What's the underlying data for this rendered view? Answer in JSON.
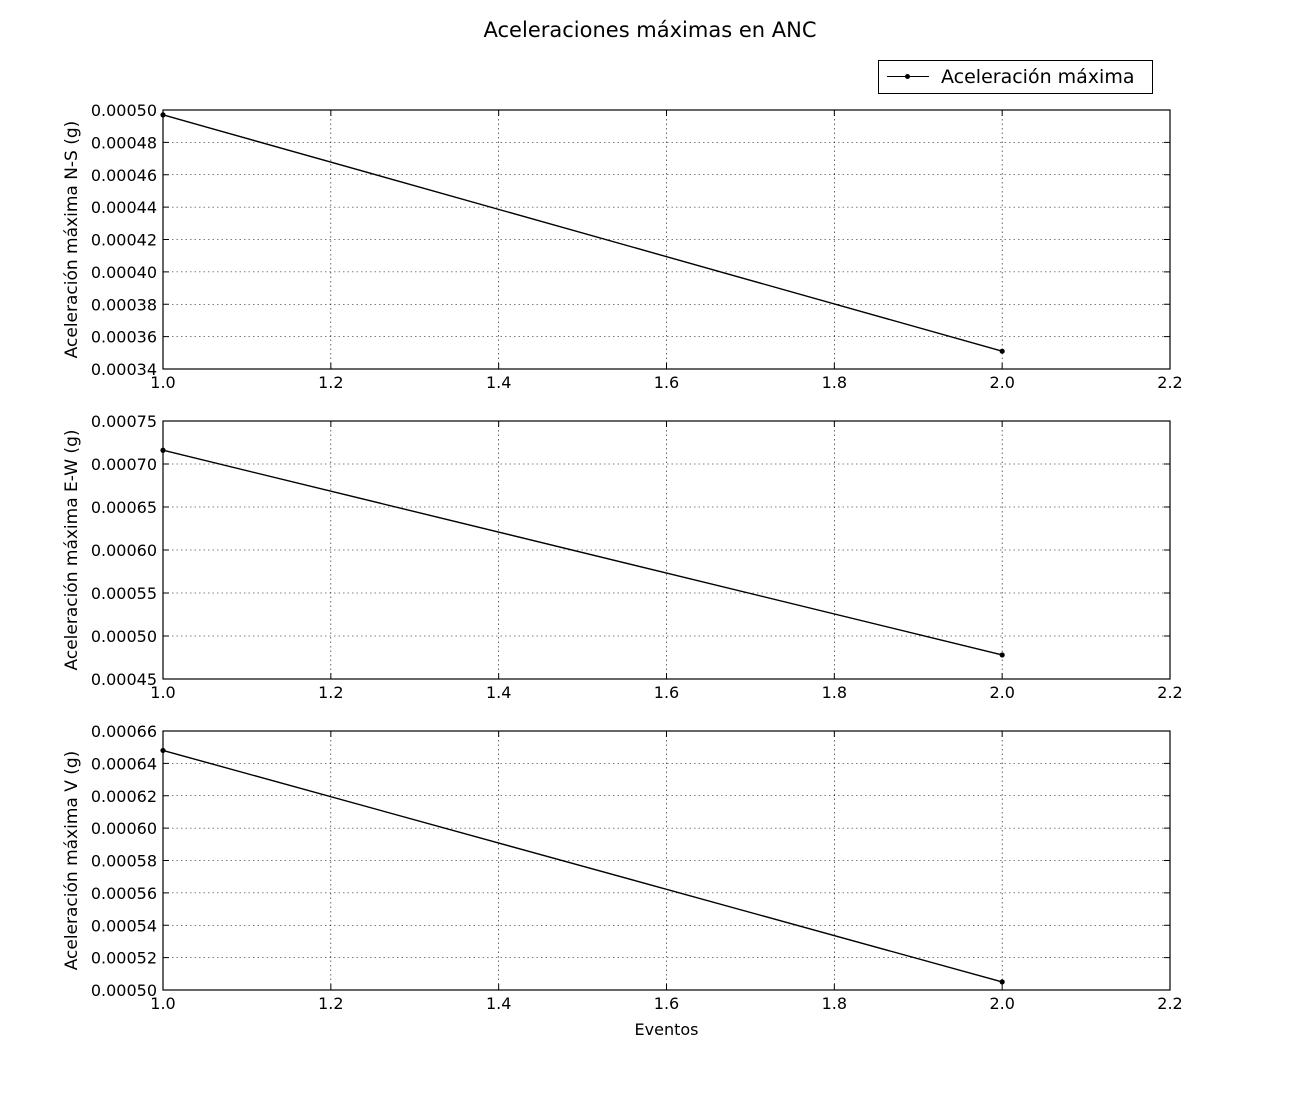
{
  "figure": {
    "title": "Aceleraciones máximas en ANC",
    "legend_label": "Aceleración máxima",
    "line_color": "#000000"
  },
  "chart_data": [
    {
      "type": "line",
      "title": "",
      "xlabel": "",
      "ylabel": "Aceleración máxima N-S (g)",
      "x": [
        1.0,
        2.0
      ],
      "series": [
        {
          "name": "Aceleración máxima",
          "values": [
            0.000497,
            0.000351
          ]
        }
      ],
      "xlim": [
        1.0,
        2.2
      ],
      "ylim": [
        0.00034,
        0.0005
      ],
      "xticks": [
        "1.0",
        "1.2",
        "1.4",
        "1.6",
        "1.8",
        "2.0",
        "2.2"
      ],
      "yticks": [
        "0.00034",
        "0.00036",
        "0.00038",
        "0.00040",
        "0.00042",
        "0.00044",
        "0.00046",
        "0.00048",
        "0.00050"
      ],
      "grid": true,
      "legend": "top-right"
    },
    {
      "type": "line",
      "title": "",
      "xlabel": "",
      "ylabel": "Aceleración máxima E-W (g)",
      "x": [
        1.0,
        2.0
      ],
      "series": [
        {
          "name": "Aceleración máxima",
          "values": [
            0.000716,
            0.000478
          ]
        }
      ],
      "xlim": [
        1.0,
        2.2
      ],
      "ylim": [
        0.00045,
        0.00075
      ],
      "xticks": [
        "1.0",
        "1.2",
        "1.4",
        "1.6",
        "1.8",
        "2.0",
        "2.2"
      ],
      "yticks": [
        "0.00045",
        "0.00050",
        "0.00055",
        "0.00060",
        "0.00065",
        "0.00070",
        "0.00075"
      ],
      "grid": true
    },
    {
      "type": "line",
      "title": "",
      "xlabel": "Eventos",
      "ylabel": "Aceleración máxima V (g)",
      "x": [
        1.0,
        2.0
      ],
      "series": [
        {
          "name": "Aceleración máxima",
          "values": [
            0.000648,
            0.000505
          ]
        }
      ],
      "xlim": [
        1.0,
        2.2
      ],
      "ylim": [
        0.0005,
        0.00066
      ],
      "xticks": [
        "1.0",
        "1.2",
        "1.4",
        "1.6",
        "1.8",
        "2.0",
        "2.2"
      ],
      "yticks": [
        "0.00050",
        "0.00052",
        "0.00054",
        "0.00056",
        "0.00058",
        "0.00060",
        "0.00062",
        "0.00064",
        "0.00066"
      ],
      "grid": true
    }
  ]
}
